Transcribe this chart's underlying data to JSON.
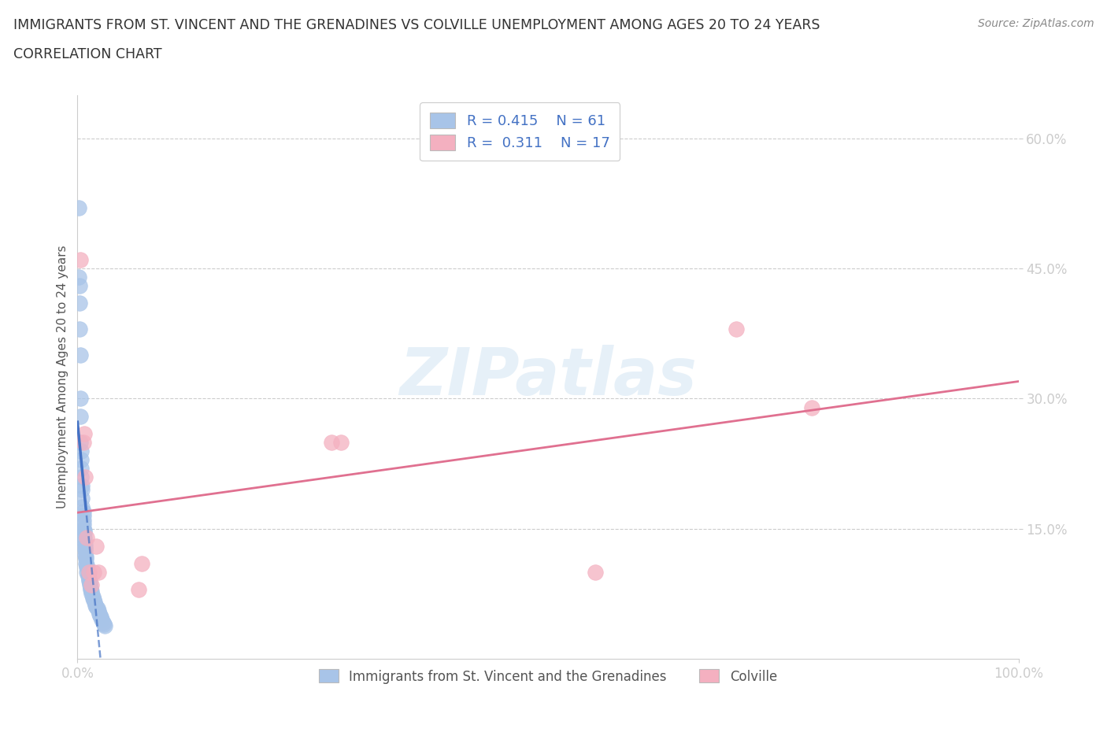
{
  "title_line1": "IMMIGRANTS FROM ST. VINCENT AND THE GRENADINES VS COLVILLE UNEMPLOYMENT AMONG AGES 20 TO 24 YEARS",
  "title_line2": "CORRELATION CHART",
  "source": "Source: ZipAtlas.com",
  "ylabel": "Unemployment Among Ages 20 to 24 years",
  "legend1_label": "Immigrants from St. Vincent and the Grenadines",
  "legend2_label": "Colville",
  "R1": "0.415",
  "N1": "61",
  "R2": "0.311",
  "N2": "17",
  "blue_color": "#a8c4e8",
  "pink_color": "#f4b0c0",
  "blue_line_color": "#4472c4",
  "pink_line_color": "#e07090",
  "title_color": "#333333",
  "legend_text_color": "#4472c4",
  "watermark_text": "ZIPatlas",
  "blue_dots_x": [
    0.001,
    0.001,
    0.002,
    0.002,
    0.002,
    0.003,
    0.003,
    0.003,
    0.003,
    0.004,
    0.004,
    0.004,
    0.004,
    0.005,
    0.005,
    0.005,
    0.005,
    0.006,
    0.006,
    0.006,
    0.006,
    0.006,
    0.007,
    0.007,
    0.007,
    0.007,
    0.008,
    0.008,
    0.008,
    0.008,
    0.009,
    0.009,
    0.009,
    0.01,
    0.01,
    0.01,
    0.011,
    0.011,
    0.012,
    0.012,
    0.013,
    0.013,
    0.014,
    0.014,
    0.015,
    0.015,
    0.016,
    0.016,
    0.017,
    0.018,
    0.019,
    0.02,
    0.021,
    0.022,
    0.023,
    0.024,
    0.025,
    0.026,
    0.027,
    0.028,
    0.029
  ],
  "blue_dots_y": [
    0.52,
    0.44,
    0.43,
    0.41,
    0.38,
    0.35,
    0.3,
    0.28,
    0.25,
    0.24,
    0.23,
    0.22,
    0.21,
    0.2,
    0.195,
    0.185,
    0.175,
    0.17,
    0.165,
    0.16,
    0.155,
    0.15,
    0.148,
    0.145,
    0.14,
    0.135,
    0.132,
    0.128,
    0.125,
    0.12,
    0.118,
    0.115,
    0.11,
    0.108,
    0.105,
    0.1,
    0.098,
    0.095,
    0.092,
    0.09,
    0.088,
    0.085,
    0.082,
    0.08,
    0.078,
    0.075,
    0.072,
    0.07,
    0.068,
    0.065,
    0.062,
    0.06,
    0.058,
    0.055,
    0.052,
    0.05,
    0.048,
    0.045,
    0.042,
    0.04,
    0.038
  ],
  "pink_dots_x": [
    0.003,
    0.006,
    0.007,
    0.008,
    0.01,
    0.012,
    0.015,
    0.017,
    0.02,
    0.022,
    0.065,
    0.068,
    0.27,
    0.28,
    0.55,
    0.7,
    0.78
  ],
  "pink_dots_y": [
    0.46,
    0.25,
    0.26,
    0.21,
    0.14,
    0.1,
    0.085,
    0.1,
    0.13,
    0.1,
    0.08,
    0.11,
    0.25,
    0.25,
    0.1,
    0.38,
    0.29
  ],
  "xlim": [
    0.0,
    1.0
  ],
  "ylim": [
    0.0,
    0.65
  ],
  "yticks": [
    0.15,
    0.3,
    0.45,
    0.6
  ],
  "ytick_labels": [
    "15.0%",
    "30.0%",
    "45.0%",
    "60.0%"
  ]
}
